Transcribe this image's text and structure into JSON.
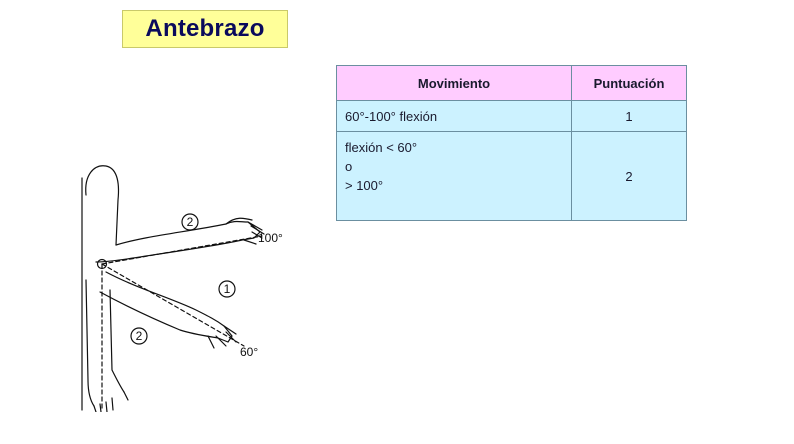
{
  "title": "Antebrazo",
  "table": {
    "headers": {
      "movement": "Movimiento",
      "score": "Puntuación"
    },
    "rows": [
      {
        "movement": [
          "60°-100° flexión"
        ],
        "score": "1"
      },
      {
        "movement": [
          "flexión < 60°",
          "o",
          "> 100°"
        ],
        "score": "2"
      }
    ]
  },
  "figure": {
    "zone_top": "2",
    "zone_middle": "1",
    "zone_bottom": "2",
    "angle_high": "100°",
    "angle_low": "60°"
  },
  "colors": {
    "title_bg": "#ffff99",
    "title_text": "#0a0a5c",
    "header_bg": "#ffccff",
    "cell_bg": "#ccf2ff"
  }
}
